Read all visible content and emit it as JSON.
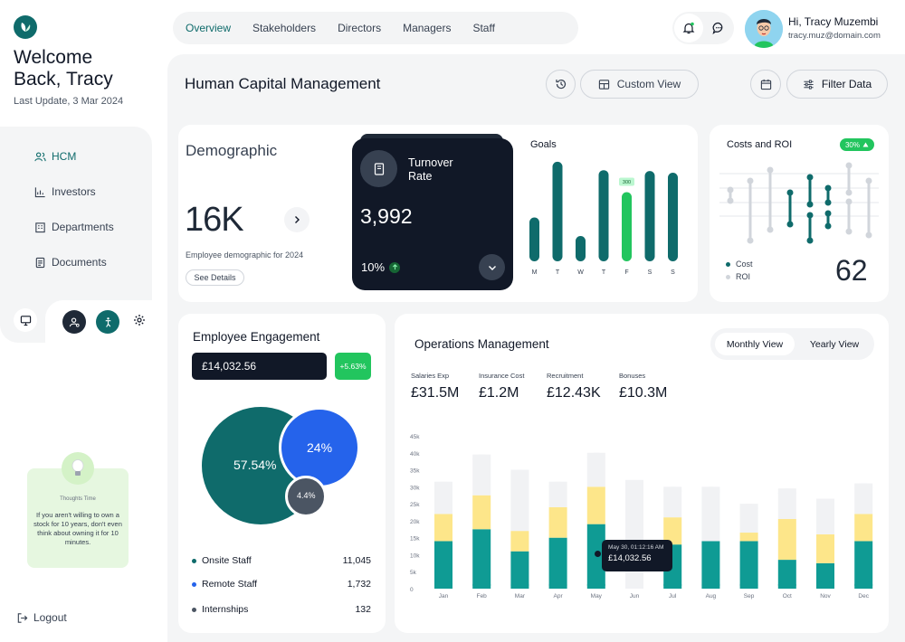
{
  "sidebar": {
    "welcome_line1": "Welcome",
    "welcome_line2": "Back, Tracy",
    "last_update": "Last Update, 3 Mar 2024",
    "nav": [
      {
        "label": "HCM",
        "icon": "users-icon"
      },
      {
        "label": "Investors",
        "icon": "chart-icon"
      },
      {
        "label": "Departments",
        "icon": "building-icon"
      },
      {
        "label": "Documents",
        "icon": "document-icon"
      }
    ],
    "tip_title": "Thoughts Time",
    "tip_text": "If you aren't willing to own a stock for 10 years, don't even think about owning it for 10 minutes.",
    "logout": "Logout"
  },
  "topnav": {
    "tabs": [
      "Overview",
      "Stakeholders",
      "Directors",
      "Managers",
      "Staff"
    ]
  },
  "user": {
    "greeting": "Hi, Tracy Muzembi",
    "email": "tracy.muz@domain.com"
  },
  "header": {
    "title": "Human Capital Management",
    "custom_view": "Custom View",
    "filter": "Filter Data"
  },
  "demographic": {
    "title": "Demographic",
    "value": "16K",
    "caption": "Employee demographic for 2024",
    "details": "See Details"
  },
  "turnover": {
    "title_line1": "Turnover",
    "title_line2": "Rate",
    "value": "3,992",
    "percent": "10%"
  },
  "goals": {
    "title": "Goals",
    "days": [
      "M",
      "T",
      "W",
      "T",
      "F",
      "S",
      "S"
    ],
    "values": [
      52,
      118,
      30,
      108,
      82,
      107,
      105
    ],
    "max": 120,
    "highlight_index": 4,
    "highlight_label": "300"
  },
  "costs": {
    "title": "Costs and ROI",
    "badge": "30%",
    "legend_cost": "Cost",
    "legend_roi": "ROI",
    "value": "62"
  },
  "engagement": {
    "title": "Employee Engagement",
    "amount": "£14,032.56",
    "change": "+5.63%",
    "big_pct": "57.54%",
    "blue_pct": "24%",
    "small_pct": "4.4%",
    "rows": [
      {
        "label": "Onsite Staff",
        "value": "11,045",
        "color": "#0f6b6b"
      },
      {
        "label": "Remote Staff",
        "value": "1,732",
        "color": "#2563eb"
      },
      {
        "label": "Internships",
        "value": "132",
        "color": "#4b5563"
      }
    ]
  },
  "operations": {
    "title": "Operations Management",
    "monthly": "Monthly View",
    "yearly": "Yearly View",
    "stats": [
      {
        "label": "Salaries Exp",
        "value": "£31.5M"
      },
      {
        "label": "Insurance Cost",
        "value": "£1.2M"
      },
      {
        "label": "Recruitment",
        "value": "£12.43K"
      },
      {
        "label": "Bonuses",
        "value": "£10.3M"
      }
    ],
    "tooltip_date": "May 30, 01:12:16 AM",
    "tooltip_value": "£14,032.56"
  },
  "chart_data": {
    "type": "bar",
    "categories": [
      "Jan",
      "Feb",
      "Mar",
      "Apr",
      "May",
      "Jun",
      "Jul",
      "Aug",
      "Sep",
      "Oct",
      "Nov",
      "Dec"
    ],
    "y_ticks": [
      "45k",
      "40k",
      "35k",
      "30k",
      "25k",
      "20k",
      "15k",
      "10k",
      "5k",
      "0"
    ],
    "ylim": [
      0,
      45000
    ],
    "series": [
      {
        "values": [
          14000,
          17500,
          11000,
          15000,
          19000,
          0,
          13000,
          14000,
          14000,
          8500,
          7500,
          14000
        ]
      },
      {
        "values": [
          8000,
          10000,
          6000,
          9000,
          11000,
          0,
          8000,
          0,
          2500,
          12000,
          8500,
          8000
        ]
      },
      {
        "values": [
          9500,
          12000,
          18000,
          7500,
          10000,
          32000,
          9000,
          16000,
          8500,
          9000,
          10500,
          9000
        ]
      }
    ],
    "colors": [
      "#0f9b94",
      "#fde68a",
      "#f1f2f4"
    ]
  }
}
